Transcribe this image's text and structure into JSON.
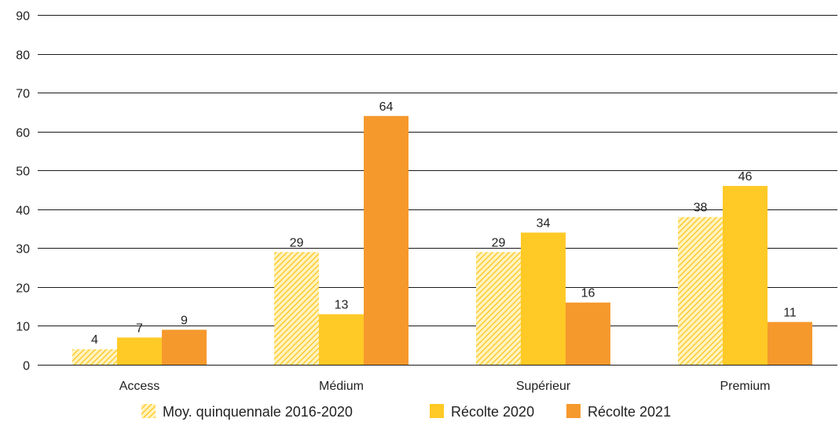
{
  "chart_data": {
    "type": "bar",
    "categories": [
      "Access",
      "Médium",
      "Supérieur",
      "Premium"
    ],
    "series": [
      {
        "name": "Moy. quinquennale 2016-2020",
        "values": [
          4,
          29,
          29,
          38
        ],
        "color": "#FFD84A",
        "pattern": "diagonal-hatch"
      },
      {
        "name": "Récolte 2020",
        "values": [
          7,
          13,
          34,
          46
        ],
        "color": "#FFC926"
      },
      {
        "name": "Récolte 2021",
        "values": [
          9,
          64,
          16,
          11
        ],
        "color": "#F6992D"
      }
    ],
    "title": "",
    "xlabel": "",
    "ylabel": "",
    "ylim": [
      0,
      90
    ],
    "yticks": [
      0,
      10,
      20,
      30,
      40,
      50,
      60,
      70,
      80,
      90
    ],
    "grid": true,
    "legend_position": "bottom"
  }
}
